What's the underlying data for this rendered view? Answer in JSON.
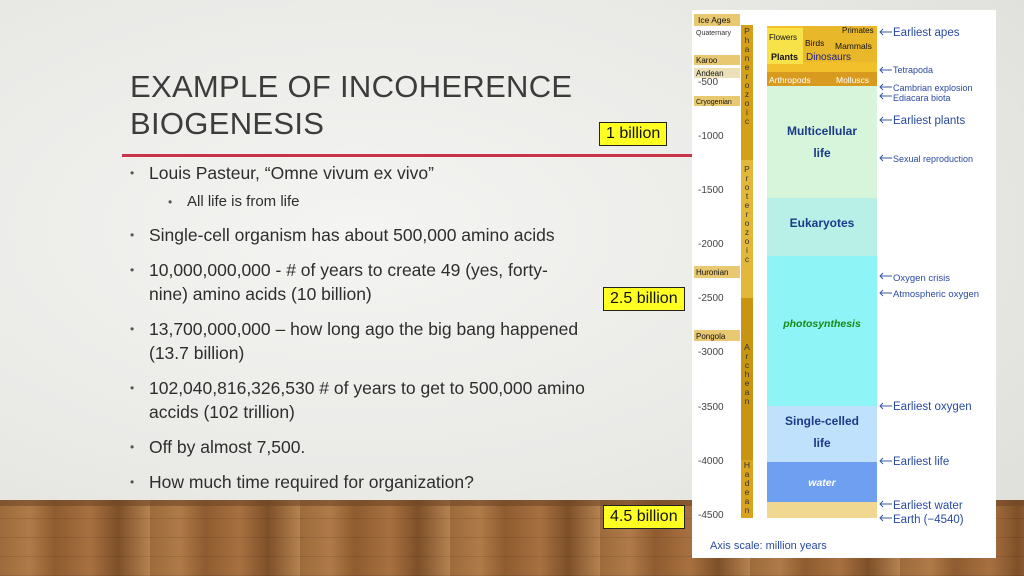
{
  "slide": {
    "title_line1": "EXAMPLE OF INCOHERENCE",
    "title_line2": "BIOGENESIS",
    "bullets": [
      {
        "text": "Louis Pasteur, “Omne vivum ex vivo”"
      },
      {
        "text": "All life is from life"
      },
      {
        "text": "Single-cell organism has about 500,000 amino acids"
      },
      {
        "line1": "10,000,000,000 - # of years to create 49 (yes, forty-",
        "line2": "nine) amino acids (10 billion)"
      },
      {
        "line1": "13,700,000,000 – how long ago the big bang happened",
        "line2": "(13.7 billion)"
      },
      {
        "line1": "102,040,816,326,530 # of years to get to 500,000 amino",
        "line2": "accids (102 trillion)"
      },
      {
        "text": "Off by almost 7,500."
      },
      {
        "text": "How much time required for organization?"
      }
    ],
    "callouts": [
      "1 billion",
      "2.5 billion",
      "4.5 billion"
    ],
    "bullet_glyph": "•"
  },
  "timeline": {
    "left_labels": [
      "Ice Ages",
      "Quaternary",
      "Karoo",
      "Andean",
      "Cryogenian",
      "Huronian",
      "Pongola"
    ],
    "ticks": [
      "-500",
      "-1000",
      "-1500",
      "-2000",
      "-2500",
      "-3000",
      "-3500",
      "-4000",
      "-4500"
    ],
    "eons": [
      "Phanerozoic",
      "Proterozoic",
      "Archean",
      "Hadean"
    ],
    "blocks": {
      "flowers": "Flowers",
      "plants": "Plants",
      "birds": "Birds",
      "mammals": "Mammals",
      "primates": "Primates",
      "dinosaurs": "Dinosaurs",
      "arthropods": "Arthropods",
      "molluscs": "Molluscs",
      "multicellular_1": "Multicellular",
      "multicellular_2": "life",
      "eukaryotes": "Eukaryotes",
      "photosynthesis": "photosynthesis",
      "singlecelled_1": "Single-celled",
      "singlecelled_2": "life",
      "water": "water"
    },
    "events": [
      "Earliest apes",
      "Tetrapoda",
      "Cambrian explosion",
      "Ediacara biota",
      "Earliest plants",
      "Sexual reproduction",
      "Oxygen crisis",
      "Atmospheric oxygen",
      "Earliest oxygen",
      "Earliest life",
      "Earliest water",
      "Earth (−4540)"
    ],
    "axis_caption": "Axis scale: million years"
  }
}
